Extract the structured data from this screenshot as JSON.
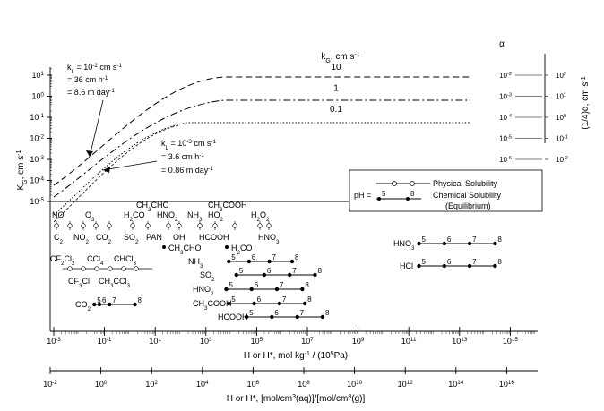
{
  "chart_data": {
    "type": "line",
    "kg_axis": {
      "label_main": "K",
      "label_sub": "G",
      "label_rest": ", cm s",
      "ticks": [
        {
          "base": "10",
          "exp": "1",
          "value": 1
        },
        {
          "base": "10",
          "exp": "0",
          "value": 0
        },
        {
          "base": "10",
          "exp": "-1",
          "value": -1
        },
        {
          "base": "10",
          "exp": "-2",
          "value": -2
        },
        {
          "base": "10",
          "exp": "-3",
          "value": -3
        },
        {
          "base": "10",
          "exp": "-4",
          "value": -4
        },
        {
          "base": "10",
          "exp": "-5",
          "value": -5
        }
      ]
    },
    "x_axis_top": {
      "label": "H or H*, mol kg",
      "label_tail": " / (10",
      "label_tail_exp": "5",
      "label_end": "Pa)",
      "ticks": [
        {
          "base": "10",
          "exp": "-3",
          "value": -3
        },
        {
          "base": "10",
          "exp": "-1",
          "value": -1
        },
        {
          "base": "10",
          "exp": "1",
          "value": 1
        },
        {
          "base": "10",
          "exp": "3",
          "value": 3
        },
        {
          "base": "10",
          "exp": "5",
          "value": 5
        },
        {
          "base": "10",
          "exp": "7",
          "value": 7
        },
        {
          "base": "10",
          "exp": "9",
          "value": 9
        },
        {
          "base": "10",
          "exp": "11",
          "value": 11
        },
        {
          "base": "10",
          "exp": "13",
          "value": 13
        },
        {
          "base": "10",
          "exp": "15",
          "value": 15
        }
      ]
    },
    "x_axis_bottom": {
      "label": "H or H*, [mol/cm",
      "label_mid": "(aq)]/[mol/cm",
      "label_end": "(g)]",
      "ticks": [
        {
          "base": "10",
          "exp": "-2",
          "value": -2
        },
        {
          "base": "10",
          "exp": "0",
          "value": 0
        },
        {
          "base": "10",
          "exp": "2",
          "value": 2
        },
        {
          "base": "10",
          "exp": "4",
          "value": 4
        },
        {
          "base": "10",
          "exp": "6",
          "value": 6
        },
        {
          "base": "10",
          "exp": "8",
          "value": 8
        },
        {
          "base": "10",
          "exp": "10",
          "value": 10
        },
        {
          "base": "10",
          "exp": "12",
          "value": 12
        },
        {
          "base": "10",
          "exp": "14",
          "value": 14
        },
        {
          "base": "10",
          "exp": "16",
          "value": 16
        }
      ]
    },
    "right_axis": {
      "alpha_title": "α",
      "alpha_ticks": [
        {
          "base": "10",
          "exp": "-2",
          "value": 1
        },
        {
          "base": "10",
          "exp": "-3",
          "value": 0
        },
        {
          "base": "10",
          "exp": "-4",
          "value": -1
        },
        {
          "base": "10",
          "exp": "-5",
          "value": -2
        },
        {
          "base": "10",
          "exp": "-6",
          "value": -3
        }
      ],
      "inv_ticks": [
        {
          "base": "10",
          "exp": "2",
          "value": 1
        },
        {
          "base": "10",
          "exp": "1",
          "value": 0
        },
        {
          "base": "10",
          "exp": "0",
          "value": -1
        },
        {
          "base": "10",
          "exp": "-1",
          "value": -2
        },
        {
          "base": "10",
          "exp": "-2",
          "value": -3
        }
      ],
      "label": "(1/4)α, cm s"
    },
    "kg_series_title": "k",
    "kg_series_title_sub": "G",
    "kg_series_title_rest": ", cm s",
    "series": [
      {
        "name": "10",
        "style": "dash",
        "plateau": 1
      },
      {
        "name": "1",
        "style": "dashdot",
        "plateau": 0
      },
      {
        "name": "0.1",
        "style": "dot",
        "plateau": -1
      }
    ],
    "kl_high": {
      "line1": "k",
      "line1_sub": "L",
      "line1_rest": " = 10",
      "line1_exp": "-2",
      "line1_unit": " cm s",
      "line2": "= 36 cm h",
      "line3": "= 8.6 m day"
    },
    "kl_low": {
      "line1": "k",
      "line1_sub": "L",
      "line1_rest": " = 10",
      "line1_exp": "-3",
      "line1_unit": " cm s",
      "line2": "= 3.6 cm h",
      "line3": "= 0.86 m day"
    },
    "minus_one": "-1",
    "legend": {
      "physical": "Physical Solubility",
      "ph": "pH =",
      "ph5": "5",
      "ph8": "8",
      "chemical": "Chemical Solubility",
      "equilibrium": "(Equilibrium)"
    },
    "species_text": [
      "NO",
      "O",
      "CH",
      "CHO",
      "CH",
      "COOH",
      "H",
      "CO",
      "HNO",
      "NH",
      "HO",
      "H",
      "O",
      "C",
      "NO",
      "CO",
      "SO",
      "PAN",
      "OH",
      "HCOOH",
      "HNO",
      "CH",
      "CHO",
      "H",
      "CO",
      "CF",
      "Cl",
      "CCl",
      "CHCl",
      "CF",
      "Cl",
      "CH",
      "CCl",
      "CO"
    ],
    "chemical_rows": [
      {
        "name": "NH",
        "sub": "3",
        "ph": [
          5,
          6,
          7,
          8
        ],
        "h": [
          3.9,
          4.7,
          5.5,
          6.4
        ]
      },
      {
        "name": "SO",
        "sub": "2",
        "ph": [
          5,
          6,
          7,
          8
        ],
        "h": [
          4.2,
          5.3,
          6.3,
          7.3
        ]
      },
      {
        "name": "HNO",
        "sub": "2",
        "ph": [
          5,
          6,
          7,
          8
        ],
        "h": [
          3.8,
          4.8,
          5.8,
          6.8
        ]
      },
      {
        "name": "CH",
        "sub": "3",
        "name2": "COOH",
        "ph": [
          5,
          6,
          7,
          8
        ],
        "h": [
          3.9,
          4.9,
          5.9,
          6.9
        ]
      },
      {
        "name": "HCOOH",
        "ph": [
          5,
          6,
          7,
          8
        ],
        "h": [
          4.6,
          5.6,
          6.6,
          7.6
        ]
      },
      {
        "name": "HNO",
        "sub": "3",
        "ph": [
          5,
          6,
          7,
          8
        ],
        "h": [
          11.4,
          12.4,
          13.4,
          14.4
        ]
      },
      {
        "name": "HCl",
        "ph": [
          5,
          6,
          7,
          8
        ],
        "h": [
          11.4,
          12.4,
          13.4,
          14.4
        ]
      },
      {
        "name": "CO",
        "sub": "2",
        "ph": [
          5,
          6,
          7,
          8
        ],
        "h": [
          -1.4,
          -1.2,
          -0.8,
          0.2
        ]
      }
    ]
  }
}
